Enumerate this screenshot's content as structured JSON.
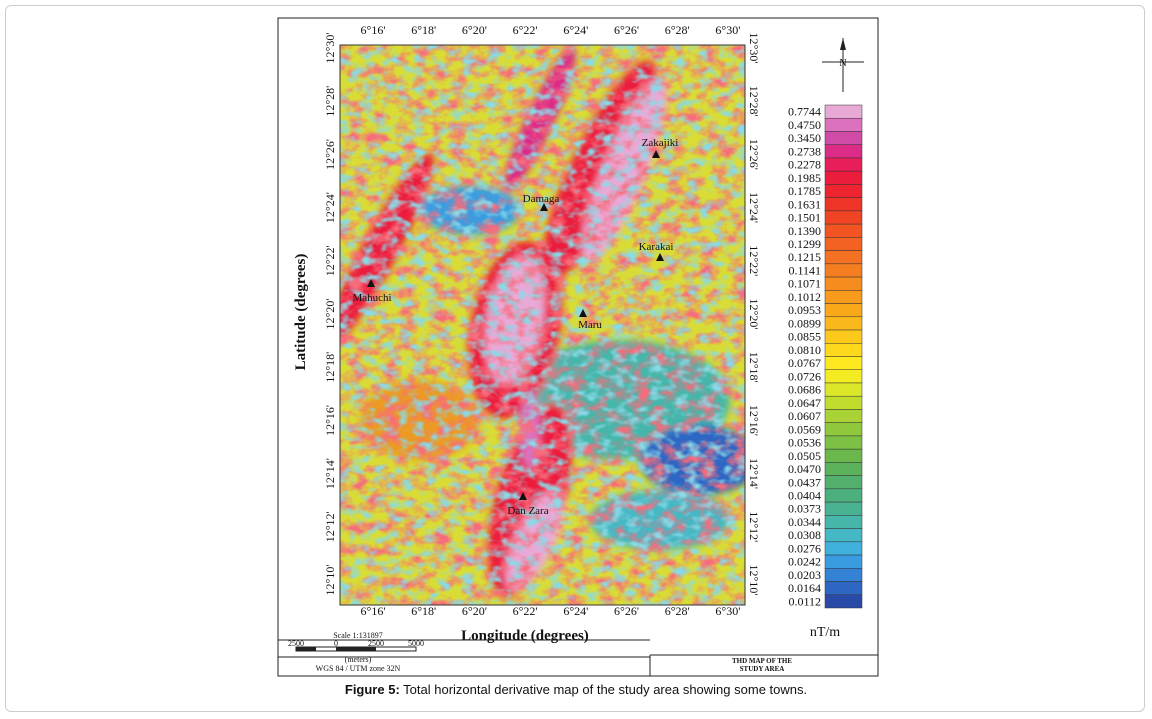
{
  "figure": {
    "lon_ticks": [
      "6°16'",
      "6°18'",
      "6°20'",
      "6°22'",
      "6°24'",
      "6°26'",
      "6°28'",
      "6°30'"
    ],
    "lat_ticks": [
      "12°30'",
      "12°28'",
      "12°26'",
      "12°24'",
      "12°22'",
      "12°20'",
      "12°18'",
      "12°16'",
      "12°14'",
      "12°12'",
      "12°10'"
    ],
    "x_title": "Longitude (degrees)",
    "y_title": "Latitude (degrees)",
    "towns": [
      "Zakajiki",
      "Damaga",
      "Karakai",
      "Mahuchi",
      "Maru",
      "Dan Zara"
    ],
    "compass": "N",
    "legend": {
      "unit": "nT/m",
      "entries": [
        {
          "label": "0.7744",
          "color": "#e9a9d6"
        },
        {
          "label": "0.4750",
          "color": "#dc72be"
        },
        {
          "label": "0.3450",
          "color": "#d04aa8"
        },
        {
          "label": "0.2738",
          "color": "#dc2c88"
        },
        {
          "label": "0.2278",
          "color": "#e81e5a"
        },
        {
          "label": "0.1985",
          "color": "#ec1c3c"
        },
        {
          "label": "0.1785",
          "color": "#ee2430"
        },
        {
          "label": "0.1631",
          "color": "#ef3428"
        },
        {
          "label": "0.1501",
          "color": "#f04424"
        },
        {
          "label": "0.1390",
          "color": "#f25422"
        },
        {
          "label": "0.1299",
          "color": "#f36222"
        },
        {
          "label": "0.1215",
          "color": "#f47022"
        },
        {
          "label": "0.1141",
          "color": "#f57e20"
        },
        {
          "label": "0.1071",
          "color": "#f68c1e"
        },
        {
          "label": "0.1012",
          "color": "#f89a1c"
        },
        {
          "label": "0.0953",
          "color": "#f9a81a"
        },
        {
          "label": "0.0899",
          "color": "#fab81a"
        },
        {
          "label": "0.0855",
          "color": "#fcc81a"
        },
        {
          "label": "0.0810",
          "color": "#fdd81c"
        },
        {
          "label": "0.0767",
          "color": "#fee820"
        },
        {
          "label": "0.0726",
          "color": "#f4ec22"
        },
        {
          "label": "0.0686",
          "color": "#dce628"
        },
        {
          "label": "0.0647",
          "color": "#c2dc2e"
        },
        {
          "label": "0.0607",
          "color": "#a8d236"
        },
        {
          "label": "0.0569",
          "color": "#90c83c"
        },
        {
          "label": "0.0536",
          "color": "#7cc044"
        },
        {
          "label": "0.0505",
          "color": "#6ab84c"
        },
        {
          "label": "0.0470",
          "color": "#5cb25a"
        },
        {
          "label": "0.0437",
          "color": "#52b06c"
        },
        {
          "label": "0.0404",
          "color": "#4cb07e"
        },
        {
          "label": "0.0373",
          "color": "#48b292"
        },
        {
          "label": "0.0344",
          "color": "#46b6aa"
        },
        {
          "label": "0.0308",
          "color": "#44b8c4"
        },
        {
          "label": "0.0276",
          "color": "#40b0dc"
        },
        {
          "label": "0.0242",
          "color": "#3a9ce0"
        },
        {
          "label": "0.0203",
          "color": "#3482d6"
        },
        {
          "label": "0.0164",
          "color": "#2e66c4"
        },
        {
          "label": "0.0112",
          "color": "#2a4aa8"
        }
      ]
    },
    "scale": {
      "title": "Scale 1:131897",
      "ticks": [
        "2500",
        "0",
        "2500",
        "5000"
      ],
      "unit": "(meters)",
      "datum": "WGS 84 / UTM zone 32N"
    },
    "map_title": [
      "THD MAP OF THE",
      "STUDY AREA"
    ]
  },
  "caption": {
    "label": "Figure 5:",
    "text": "Total horizontal derivative map of the study area showing some towns."
  }
}
